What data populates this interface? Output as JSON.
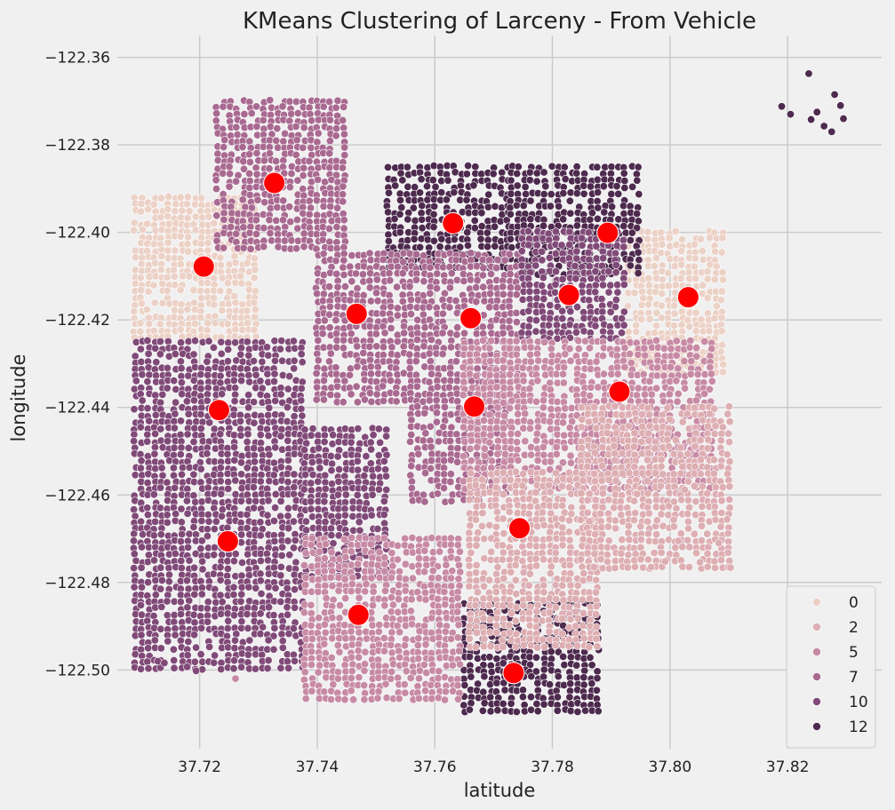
{
  "chart_data": {
    "type": "scatter",
    "title": "KMeans Clustering of Larceny - From Vehicle",
    "xlabel": "latitude",
    "ylabel": "longitude",
    "xlim": [
      37.706,
      37.836
    ],
    "ylim": [
      -122.518,
      -122.355
    ],
    "x_ticks": [
      37.72,
      37.74,
      37.76,
      37.78,
      37.8,
      37.82
    ],
    "x_tick_labels": [
      "37.72",
      "37.74",
      "37.76",
      "37.78",
      "37.80",
      "37.82"
    ],
    "y_ticks": [
      -122.36,
      -122.38,
      -122.4,
      -122.42,
      -122.44,
      -122.46,
      -122.48,
      -122.5
    ],
    "y_tick_labels": [
      "−122.36",
      "−122.38",
      "−122.40",
      "−122.42",
      "−122.44",
      "−122.46",
      "−122.48",
      "−122.50"
    ],
    "grid": true,
    "legend_position": "bottom-right",
    "legend": [
      {
        "label": "0",
        "color": "#ecd1c6"
      },
      {
        "label": "2",
        "color": "#ddaeb2"
      },
      {
        "label": "5",
        "color": "#c78aa4"
      },
      {
        "label": "7",
        "color": "#a96a91"
      },
      {
        "label": "10",
        "color": "#804a78"
      },
      {
        "label": "12",
        "color": "#4d2a4e"
      }
    ],
    "centroid_color": "#ff0000",
    "centroids": [
      {
        "x": 37.7327,
        "y": -122.3887
      },
      {
        "x": 37.7631,
        "y": -122.3979
      },
      {
        "x": 37.7894,
        "y": -122.4001
      },
      {
        "x": 37.7207,
        "y": -122.4078
      },
      {
        "x": 37.7828,
        "y": -122.4143
      },
      {
        "x": 37.8031,
        "y": -122.4148
      },
      {
        "x": 37.7467,
        "y": -122.4186
      },
      {
        "x": 37.7661,
        "y": -122.4196
      },
      {
        "x": 37.7914,
        "y": -122.4364
      },
      {
        "x": 37.7233,
        "y": -122.4406
      },
      {
        "x": 37.7667,
        "y": -122.4398
      },
      {
        "x": 37.7744,
        "y": -122.4676
      },
      {
        "x": 37.7248,
        "y": -122.4706
      },
      {
        "x": 37.747,
        "y": -122.4874
      },
      {
        "x": 37.7734,
        "y": -122.5007
      }
    ],
    "clusters": [
      {
        "label": "0",
        "color": "#ecd1c6",
        "region": [
          37.709,
          -122.392,
          37.73,
          -122.425
        ]
      },
      {
        "label": "0",
        "color": "#ecd1c6",
        "region": [
          37.793,
          -122.4,
          37.81,
          -122.432
        ]
      },
      {
        "label": "12",
        "color": "#4d2a4e",
        "region": [
          37.752,
          -122.385,
          37.773,
          -122.408
        ]
      },
      {
        "label": "12",
        "color": "#4d2a4e",
        "region": [
          37.773,
          -122.385,
          37.795,
          -122.41
        ]
      },
      {
        "label": "12",
        "color": "#4d2a4e",
        "region": [
          37.765,
          -122.485,
          37.788,
          -122.51
        ]
      },
      {
        "label": "7",
        "color": "#a96a91",
        "region": [
          37.723,
          -122.37,
          37.745,
          -122.405
        ]
      },
      {
        "label": "7",
        "color": "#a96a91",
        "region": [
          37.74,
          -122.405,
          37.775,
          -122.44
        ]
      },
      {
        "label": "7",
        "color": "#a96a91",
        "region": [
          37.756,
          -122.44,
          37.772,
          -122.462
        ]
      },
      {
        "label": "10",
        "color": "#804a78",
        "region": [
          37.775,
          -122.4,
          37.793,
          -122.425
        ]
      },
      {
        "label": "10",
        "color": "#804a78",
        "region": [
          37.709,
          -122.425,
          37.738,
          -122.5
        ]
      },
      {
        "label": "10",
        "color": "#804a78",
        "region": [
          37.738,
          -122.445,
          37.752,
          -122.48
        ]
      },
      {
        "label": "5",
        "color": "#c78aa4",
        "region": [
          37.765,
          -122.425,
          37.808,
          -122.46
        ]
      },
      {
        "label": "2",
        "color": "#ddaeb2",
        "region": [
          37.766,
          -122.455,
          37.788,
          -122.495
        ]
      },
      {
        "label": "5",
        "color": "#c78aa4",
        "region": [
          37.738,
          -122.47,
          37.765,
          -122.508
        ]
      },
      {
        "label": "2",
        "color": "#ddaeb2",
        "region": [
          37.785,
          -122.44,
          37.811,
          -122.478
        ]
      }
    ],
    "outliers": [
      {
        "x": 37.8236,
        "y": -122.3637,
        "color": "#4d2a4e"
      },
      {
        "x": 37.819,
        "y": -122.3712,
        "color": "#4d2a4e"
      },
      {
        "x": 37.8205,
        "y": -122.373,
        "color": "#4d2a4e"
      },
      {
        "x": 37.824,
        "y": -122.3742,
        "color": "#4d2a4e"
      },
      {
        "x": 37.8262,
        "y": -122.3757,
        "color": "#4d2a4e"
      },
      {
        "x": 37.828,
        "y": -122.3685,
        "color": "#4d2a4e"
      },
      {
        "x": 37.8295,
        "y": -122.374,
        "color": "#4d2a4e"
      },
      {
        "x": 37.8275,
        "y": -122.377,
        "color": "#4d2a4e"
      },
      {
        "x": 37.829,
        "y": -122.371,
        "color": "#4d2a4e"
      },
      {
        "x": 37.825,
        "y": -122.3725,
        "color": "#4d2a4e"
      },
      {
        "x": 37.7129,
        "y": -122.498,
        "color": "#804a78"
      },
      {
        "x": 37.7194,
        "y": -122.5002,
        "color": "#804a78"
      },
      {
        "x": 37.714,
        "y": -122.4984,
        "color": "#804a78"
      },
      {
        "x": 37.71,
        "y": -122.4852,
        "color": "#804a78"
      },
      {
        "x": 37.8103,
        "y": -122.4766,
        "color": "#ddaeb2"
      },
      {
        "x": 37.8083,
        "y": -122.471,
        "color": "#ddaeb2"
      },
      {
        "x": 37.8051,
        "y": -122.4754,
        "color": "#ddaeb2"
      },
      {
        "x": 37.8014,
        "y": -122.4705,
        "color": "#ddaeb2"
      },
      {
        "x": 37.7992,
        "y": -122.4752,
        "color": "#ddaeb2"
      },
      {
        "x": 37.7978,
        "y": -122.4658,
        "color": "#ddaeb2"
      },
      {
        "x": 37.7944,
        "y": -122.4598,
        "color": "#ddaeb2"
      },
      {
        "x": 37.8025,
        "y": -122.4588,
        "color": "#ddaeb2"
      },
      {
        "x": 37.7968,
        "y": -122.4765,
        "color": "#ddaeb2"
      },
      {
        "x": 37.7261,
        "y": -122.502,
        "color": "#c78aa4"
      }
    ]
  }
}
